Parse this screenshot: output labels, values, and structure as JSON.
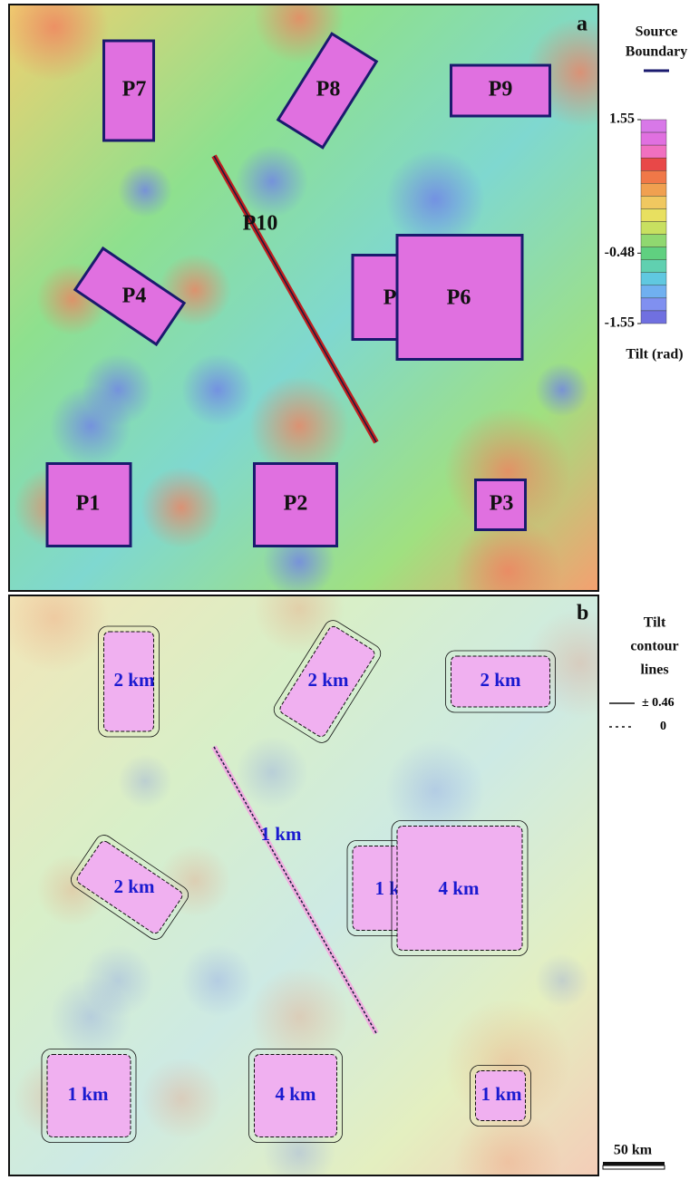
{
  "panel_a": {
    "letter": "a",
    "source_boundary": [
      "Source",
      "Boundary"
    ],
    "labels": [
      "P7",
      "P8",
      "P9",
      "P10",
      "P4",
      "P5",
      "P6",
      "P1",
      "P2",
      "P3"
    ],
    "colorbar": {
      "ticks": [
        1.55,
        -0.48,
        -1.55
      ],
      "title": "Tilt (rad)"
    }
  },
  "panel_b": {
    "letter": "b",
    "legend_title": [
      "Tilt",
      "contour",
      "lines"
    ],
    "legend": [
      "± 0.46",
      "0"
    ],
    "depth_labels": [
      "2 km",
      "2 km",
      "2 km",
      "1 km",
      "2 km",
      "1 km",
      "4 km",
      "1 km",
      "4 km",
      "1 km"
    ]
  },
  "scale_bar": "50 km"
}
